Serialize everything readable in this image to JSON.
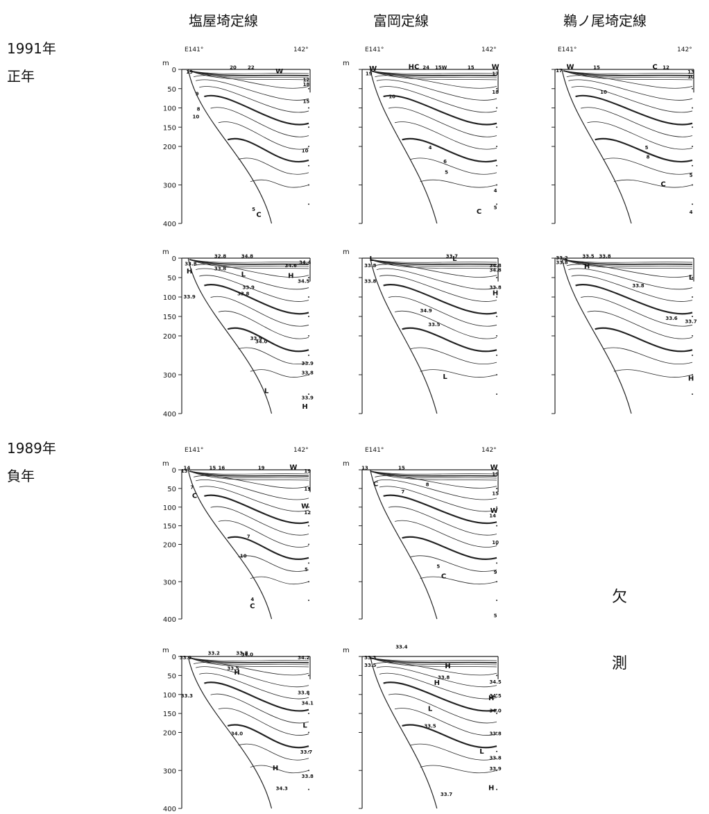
{
  "columns": [
    "塩屋埼定線",
    "富岡定線",
    "鵜ノ尾埼定線"
  ],
  "rows": [
    {
      "year": "1991年",
      "type": "正年"
    },
    {
      "year": "1989年",
      "type": "負年"
    }
  ],
  "missing": {
    "char1": "欠",
    "char2": "測"
  },
  "depth_unit": "m",
  "depth_ticks": [
    "0",
    "50",
    "100",
    "150",
    "200",
    "300",
    "400"
  ],
  "lon_labels": {
    "west": "E141°",
    "east": "142°"
  },
  "panels": [
    {
      "row": 0,
      "col": 0,
      "kind": "temperature",
      "labels": [
        "19",
        "20",
        "22",
        "W",
        "12",
        "18",
        "15",
        "10",
        "9",
        "8",
        "10",
        "5",
        "C"
      ]
    },
    {
      "row": 0,
      "col": 1,
      "kind": "temperature",
      "labels": [
        "W",
        "HC",
        "24",
        "15W",
        "15",
        "W",
        "19",
        "17",
        "18",
        "10",
        "6",
        "5",
        "4",
        "C",
        "5",
        "4"
      ]
    },
    {
      "row": 0,
      "col": 2,
      "kind": "temperature",
      "labels": [
        "W",
        "17",
        "15",
        "C",
        "12",
        "13",
        "10",
        "10",
        "5",
        "8",
        "C",
        "5",
        "4"
      ]
    },
    {
      "row": 1,
      "col": 0,
      "kind": "salinity",
      "labels": [
        "33.8",
        "32.8",
        "34.8",
        "33.8",
        "L",
        "H",
        "34.6",
        "34.4",
        "H",
        "34.5",
        "33.9",
        "33.9",
        "33.8",
        "33.9",
        "34.0",
        "33.9",
        "33.8",
        "L",
        "33.9",
        "H"
      ]
    },
    {
      "row": 1,
      "col": 1,
      "kind": "salinity",
      "labels": [
        "L",
        "33.7",
        "L",
        "33.8",
        "34.8",
        "34.8",
        "33.8",
        "33.8",
        "H",
        "34.9",
        "33.5",
        "L"
      ]
    },
    {
      "row": 1,
      "col": 2,
      "kind": "salinity",
      "labels": [
        "33.2",
        "33.8",
        "33.5",
        "33.8",
        "H",
        "33.8",
        "L",
        "33.6",
        "33.7",
        "H"
      ]
    },
    {
      "row": 2,
      "col": 0,
      "kind": "temperature",
      "labels": [
        "14",
        "13",
        "15",
        "16",
        "19",
        "W",
        "19",
        "7",
        "C",
        "11",
        "W",
        "12",
        "7",
        "10",
        "5",
        "4",
        "C"
      ]
    },
    {
      "row": 2,
      "col": 1,
      "kind": "temperature",
      "labels": [
        "13",
        "15",
        "W",
        "19",
        "C",
        "8",
        "7",
        "15",
        "W",
        "14",
        "10",
        "5",
        "C",
        "9",
        "5"
      ]
    },
    {
      "row": 3,
      "col": 0,
      "kind": "salinity",
      "labels": [
        "33.9",
        "33.2",
        "33.8",
        "33.3",
        "34.0",
        "34.2",
        "H",
        "33.5",
        "33.8",
        "34.1",
        "34.0",
        "L",
        "33.7",
        "H",
        "34.3",
        "33.8"
      ]
    },
    {
      "row": 3,
      "col": 1,
      "kind": "salinity",
      "labels": [
        "33.4",
        "33.3",
        "33.5",
        "H",
        "33.8",
        "H",
        "34.5",
        "34.5",
        "H",
        "34.0",
        "L",
        "33.5",
        "33.8",
        "L",
        "33.8",
        "33.9",
        "H",
        "33.7"
      ]
    }
  ]
}
